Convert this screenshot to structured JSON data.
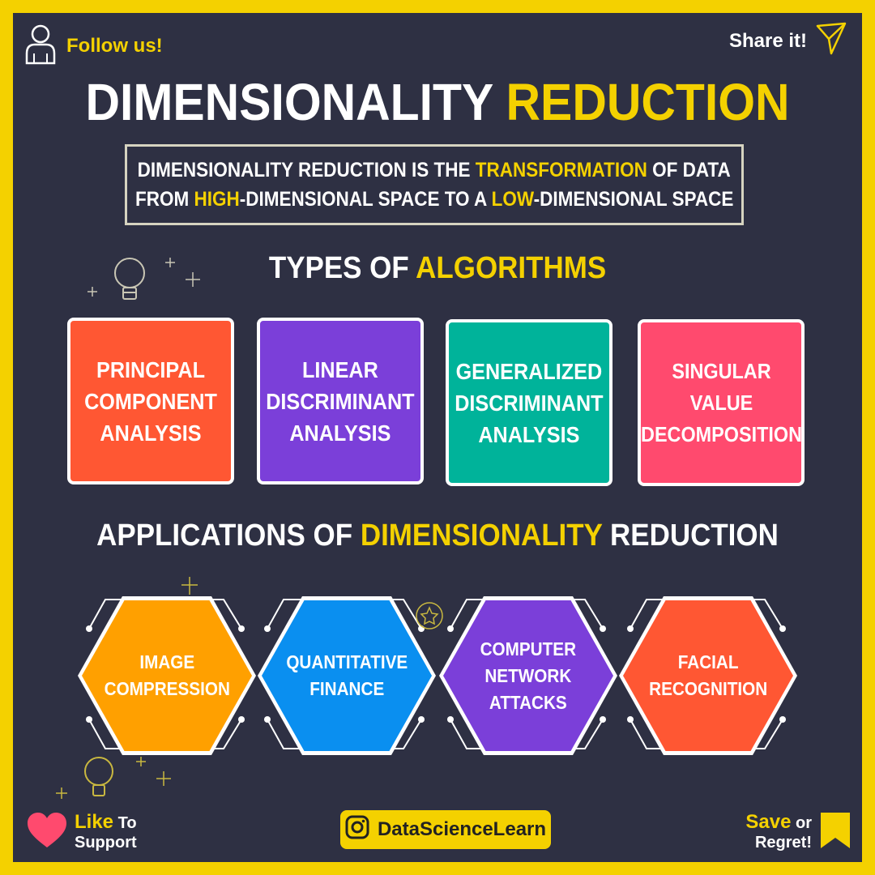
{
  "header": {
    "follow_label": "Follow us!",
    "share_label": "Share it!"
  },
  "title": {
    "part1": "DIMENSIONALITY",
    "part2": "REDUCTION"
  },
  "definition": {
    "l1a": "DIMENSIONALITY REDUCTION IS THE ",
    "l1b": "TRANSFORMATION",
    "l1c": " OF DATA",
    "l2a": "FROM ",
    "l2b": "HIGH",
    "l2c": "-DIMENSIONAL SPACE TO A ",
    "l2d": "LOW",
    "l2e": "-DIMENSIONAL SPACE"
  },
  "types_heading": {
    "part1": "TYPES OF",
    "part2": "ALGORITHMS"
  },
  "algorithms": [
    {
      "label": "PRINCIPAL\nCOMPONENT\nANALYSIS",
      "color": "#ff5733"
    },
    {
      "label": "LINEAR\nDISCRIMINANT\nANALYSIS",
      "color": "#7b3fd9"
    },
    {
      "label": "GENERALIZED\nDISCRIMINANT\nANALYSIS",
      "color": "#00b39a"
    },
    {
      "label": "SINGULAR\nVALUE\nDECOMPOSITION",
      "color": "#ff4a6e"
    }
  ],
  "apps_heading": {
    "part1": "APPLICATIONS OF",
    "part2": "DIMENSIONALITY",
    "part3": "REDUCTION"
  },
  "applications": [
    {
      "label": "IMAGE\nCOMPRESSION",
      "color": "#ffa000"
    },
    {
      "label": "QUANTITATIVE\nFINANCE",
      "color": "#0a8ff0"
    },
    {
      "label": "COMPUTER\nNETWORK\nATTACKS",
      "color": "#7b3fd9"
    },
    {
      "label": "FACIAL\nRECOGNITION",
      "color": "#ff5733"
    }
  ],
  "footer": {
    "like_word": "Like",
    "like_rest": "To",
    "like_line2": "Support",
    "handle": "DataScienceLearn",
    "save_word": "Save",
    "save_rest": "or",
    "save_line2": "Regret!"
  },
  "colors": {
    "background": "#2e3043",
    "accent": "#f4d100",
    "heart": "#ff4a6e"
  }
}
